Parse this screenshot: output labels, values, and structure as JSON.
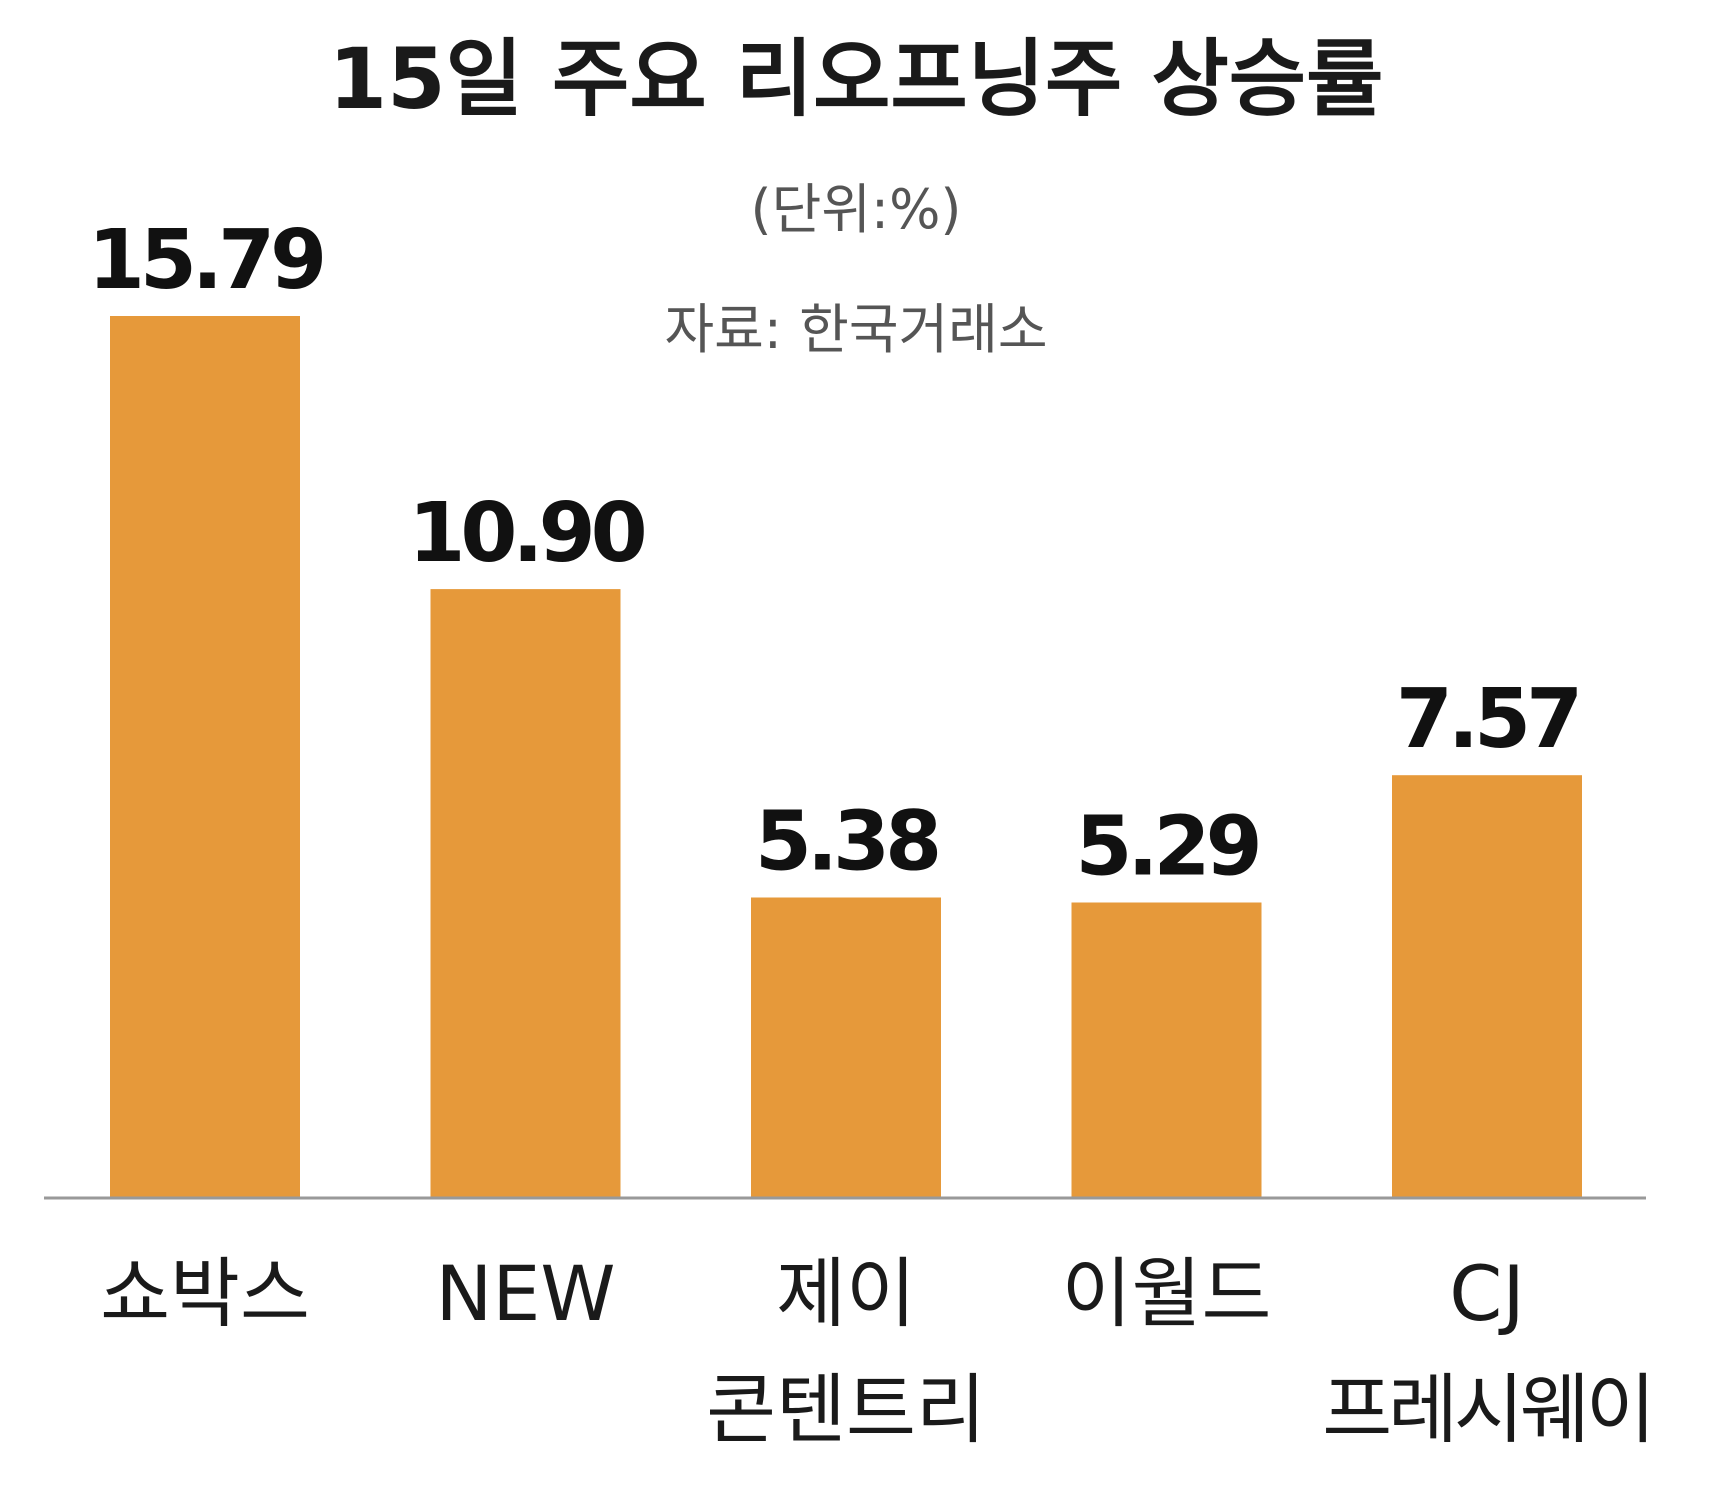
{
  "chart_data": {
    "type": "bar",
    "title": "15일 주요 리오프닝주 상승률",
    "unit_note": "(단위:%)",
    "source_note": "자료: 한국거래소",
    "categories": [
      [
        "쇼박스"
      ],
      [
        "NEW"
      ],
      [
        "제이",
        "콘텐트리"
      ],
      [
        "이월드"
      ],
      [
        "CJ",
        "프레시웨이"
      ]
    ],
    "values": [
      15.79,
      10.9,
      5.38,
      5.29,
      7.57
    ],
    "value_labels": [
      "15.79",
      "10.90",
      "5.38",
      "5.29",
      "7.57"
    ],
    "ylim": [
      0,
      15.79
    ],
    "grid": false,
    "legend": "none",
    "bar_color": "#E6993A",
    "axis_color": "#999999"
  }
}
